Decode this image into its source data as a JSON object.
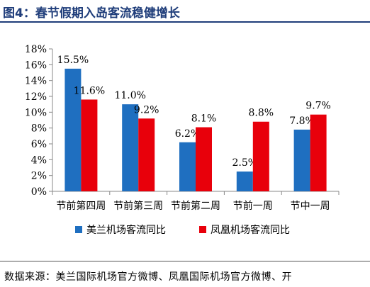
{
  "header": {
    "title": "图4：春节假期入岛客流稳健增长"
  },
  "footer": {
    "source": "数据来源：美兰国际机场官方微博、凤凰国际机场官方微博、开"
  },
  "colors": {
    "series1": "#1f6fc0",
    "series2": "#e8000b",
    "axis": "#888888",
    "title": "#1f3d7a"
  },
  "chart_data": {
    "type": "bar",
    "categories": [
      "节前第四周",
      "节前第三周",
      "节前第二周",
      "节前一周",
      "节中一周"
    ],
    "series": [
      {
        "name": "美兰机场客流同比",
        "values": [
          15.5,
          11.0,
          6.2,
          2.5,
          7.8
        ],
        "labels": [
          "15.5%",
          "11.0%",
          "6.2%",
          "2.5%",
          "7.8%"
        ]
      },
      {
        "name": "凤凰机场客流同比",
        "values": [
          11.6,
          9.2,
          8.1,
          8.8,
          9.7
        ],
        "labels": [
          "11.6%",
          "9.2%",
          "8.1%",
          "8.8%",
          "9.7%"
        ]
      }
    ],
    "ylim": [
      0,
      18
    ],
    "yticks": [
      0,
      2,
      4,
      6,
      8,
      10,
      12,
      14,
      16,
      18
    ],
    "ytick_labels": [
      "0%",
      "2%",
      "4%",
      "6%",
      "8%",
      "10%",
      "12%",
      "14%",
      "16%",
      "18%"
    ],
    "legend_position": "bottom",
    "grid": false
  }
}
